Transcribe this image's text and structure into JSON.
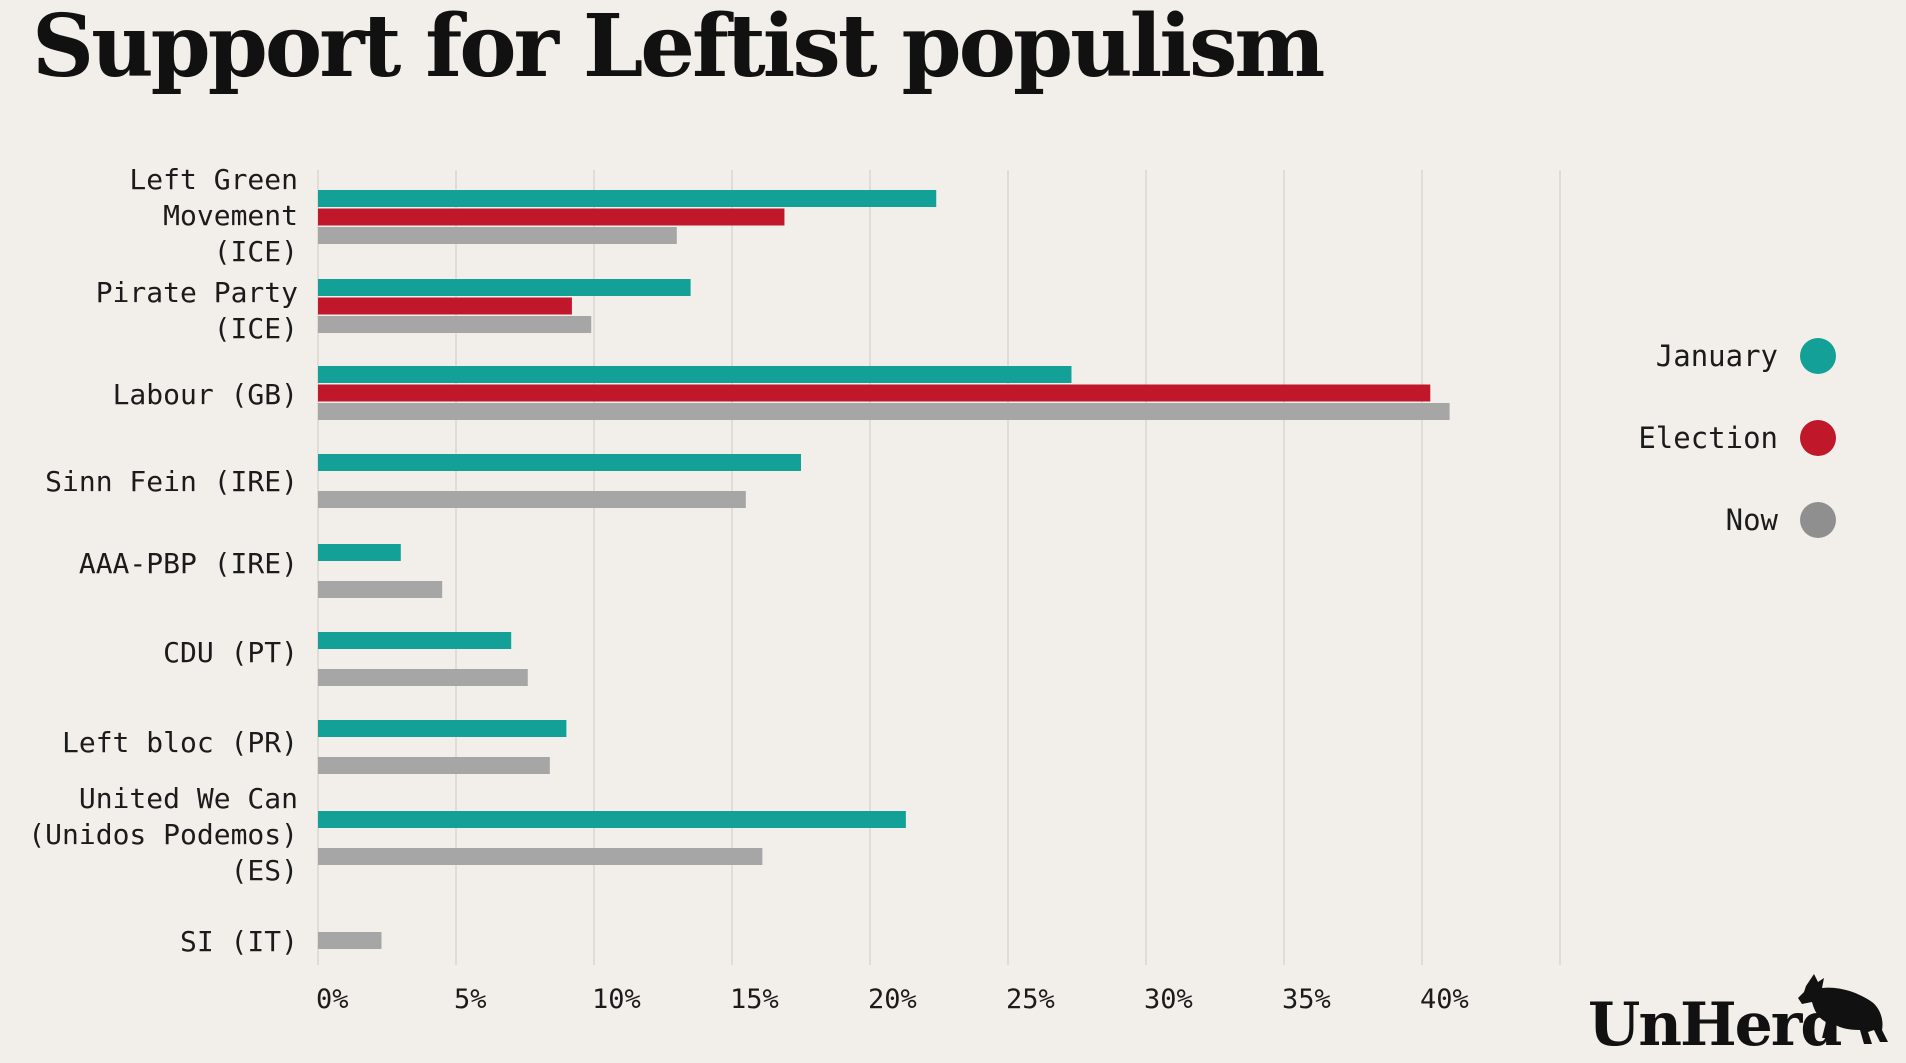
{
  "title": "Support for Leftist populism",
  "brand": "UnHerd",
  "legend": [
    {
      "label": "January",
      "color": "#13a096"
    },
    {
      "label": "Election",
      "color": "#c0172a"
    },
    {
      "label": "Now",
      "color": "#8f8f8f"
    }
  ],
  "chart_data": {
    "type": "bar",
    "orientation": "horizontal",
    "title": "Support for Leftist populism",
    "xlim": [
      0,
      45
    ],
    "xticks": [
      "0%",
      "5%",
      "10%",
      "15%",
      "20%",
      "25%",
      "30%",
      "35%",
      "40%"
    ],
    "grid": true,
    "legend_position": "right",
    "categories": [
      [
        "Left Green",
        "Movement",
        "(ICE)"
      ],
      [
        "Pirate Party",
        "(ICE)"
      ],
      [
        "Labour (GB)"
      ],
      [
        "Sinn Fein (IRE)"
      ],
      [
        "AAA-PBP (IRE)"
      ],
      [
        "CDU (PT)"
      ],
      [
        "Left bloc (PR)"
      ],
      [
        "United We Can",
        "(Unidos Podemos)",
        "(ES)"
      ],
      [
        "SI (IT)"
      ]
    ],
    "series": [
      {
        "name": "January",
        "color": "#13a096",
        "values": [
          22.4,
          13.5,
          27.3,
          17.5,
          3.0,
          7.0,
          9.0,
          21.3,
          null
        ]
      },
      {
        "name": "Election",
        "color": "#c0172a",
        "values": [
          16.9,
          9.2,
          40.3,
          null,
          null,
          null,
          null,
          null,
          null
        ]
      },
      {
        "name": "Now",
        "color": "#a6a6a6",
        "values": [
          13.0,
          9.9,
          41.0,
          15.5,
          4.5,
          7.6,
          8.4,
          16.1,
          2.3
        ]
      }
    ]
  }
}
